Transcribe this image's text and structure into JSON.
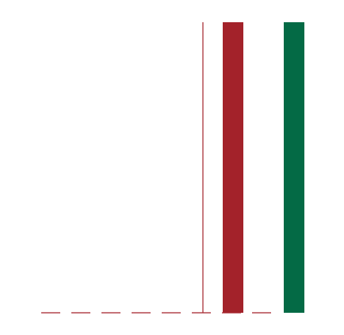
{
  "graphic": {
    "colors": {
      "background": "#ffffff",
      "red": "#a3222a",
      "green": "#046a45"
    },
    "marks": [
      "dashed-baseline",
      "thin-red-vertical-line",
      "red-bar",
      "green-bar"
    ]
  }
}
